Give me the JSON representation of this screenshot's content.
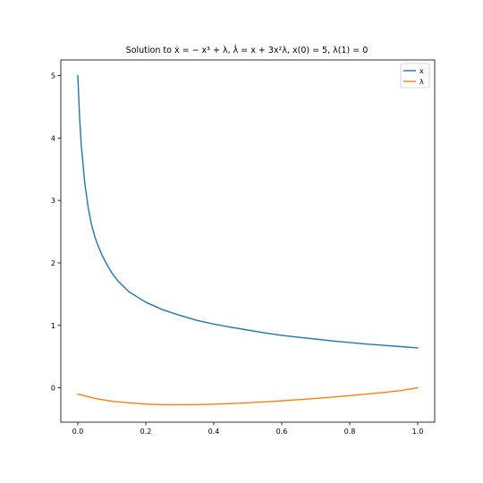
{
  "chart_data": {
    "type": "line",
    "title": "Solution to ẋ = − x³ + λ, λ̇ = x + 3x²λ, x(0) = 5, λ(1) = 0",
    "xlabel": "",
    "ylabel": "",
    "xlim": [
      -0.05,
      1.05
    ],
    "ylim": [
      -0.55,
      5.25
    ],
    "grid": false,
    "legend_position": "top-right",
    "x_ticks": [
      0.0,
      0.2,
      0.4,
      0.6,
      0.8,
      1.0
    ],
    "x_tick_labels": [
      "0.0",
      "0.2",
      "0.4",
      "0.6",
      "0.8",
      "1.0"
    ],
    "y_ticks": [
      0,
      1,
      2,
      3,
      4,
      5
    ],
    "y_tick_labels": [
      "0",
      "1",
      "2",
      "3",
      "4",
      "5"
    ],
    "series": [
      {
        "name": "x",
        "color": "#1f77b4",
        "x": [
          0.0,
          0.005,
          0.01,
          0.02,
          0.03,
          0.04,
          0.05,
          0.06,
          0.07,
          0.08,
          0.1,
          0.12,
          0.15,
          0.2,
          0.25,
          0.3,
          0.35,
          0.4,
          0.45,
          0.5,
          0.55,
          0.6,
          0.65,
          0.7,
          0.75,
          0.8,
          0.85,
          0.9,
          0.95,
          1.0
        ],
        "y": [
          5.0,
          4.35,
          3.9,
          3.3,
          2.9,
          2.62,
          2.42,
          2.27,
          2.14,
          2.03,
          1.84,
          1.7,
          1.54,
          1.37,
          1.25,
          1.16,
          1.08,
          1.02,
          0.97,
          0.925,
          0.88,
          0.84,
          0.81,
          0.78,
          0.75,
          0.725,
          0.7,
          0.68,
          0.66,
          0.64
        ]
      },
      {
        "name": "λ",
        "color": "#ff7f0e",
        "x": [
          0.0,
          0.05,
          0.1,
          0.15,
          0.2,
          0.25,
          0.3,
          0.35,
          0.4,
          0.45,
          0.5,
          0.55,
          0.6,
          0.65,
          0.7,
          0.75,
          0.8,
          0.85,
          0.9,
          0.95,
          1.0
        ],
        "y": [
          -0.1,
          -0.17,
          -0.215,
          -0.24,
          -0.26,
          -0.27,
          -0.27,
          -0.268,
          -0.262,
          -0.252,
          -0.24,
          -0.225,
          -0.208,
          -0.19,
          -0.17,
          -0.148,
          -0.125,
          -0.1,
          -0.075,
          -0.045,
          0.0
        ]
      }
    ]
  }
}
